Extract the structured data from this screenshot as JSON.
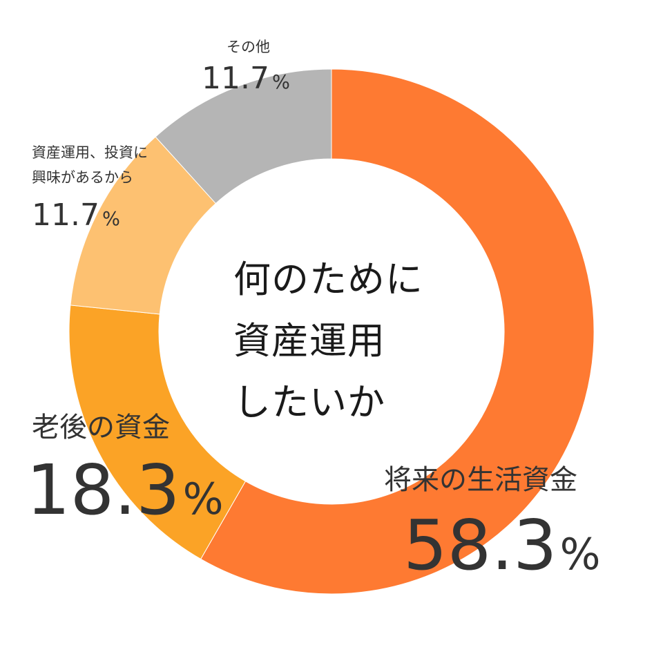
{
  "chart_data": {
    "type": "pie",
    "title": "何のために資産運用したいか",
    "title_lines": [
      "何のために",
      "資産運用",
      "したいか"
    ],
    "categories": [
      "将来の生活資金",
      "老後の資金",
      "資産運用、投資に興味があるから",
      "その他"
    ],
    "label_lines": [
      [
        "将来の生活資金"
      ],
      [
        "老後の資金"
      ],
      [
        "資産運用、投資に",
        "興味があるから"
      ],
      [
        "その他"
      ]
    ],
    "values": [
      58.3,
      18.3,
      11.7,
      11.7
    ],
    "value_labels": [
      "58.3",
      "18.3",
      "11.7",
      "11.7"
    ],
    "unit": "%",
    "colors": [
      "#fe7a32",
      "#fba326",
      "#fdc171",
      "#b5b5b5"
    ],
    "donut": true,
    "start": "12 o'clock",
    "direction": "clockwise",
    "legend": "none"
  }
}
